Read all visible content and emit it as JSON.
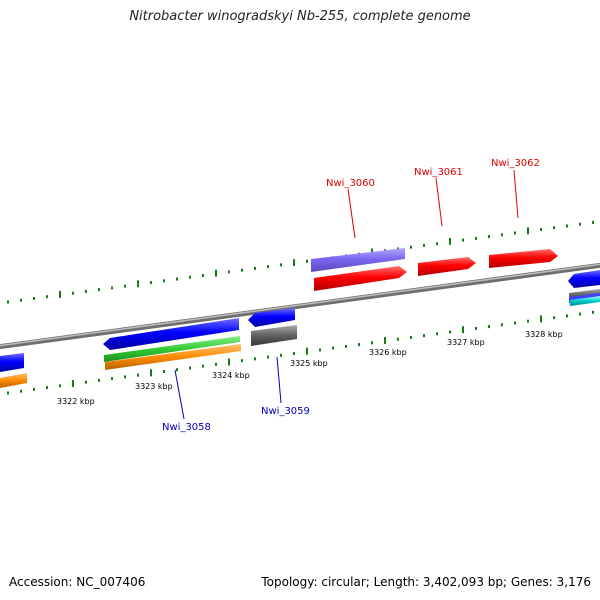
{
  "title": "Nitrobacter winogradskyi Nb-255, complete genome",
  "footer": {
    "accession": "Accession: NC_007406",
    "summary": "Topology: circular; Length: 3,402,093 bp; Genes: 3,176"
  },
  "scale": {
    "ticks": [
      {
        "label": "3322 kbp"
      },
      {
        "label": "3323 kbp"
      },
      {
        "label": "3324 kbp"
      },
      {
        "label": "3325 kbp"
      },
      {
        "label": "3326 kbp"
      },
      {
        "label": "3327 kbp"
      },
      {
        "label": "3328 kbp"
      }
    ]
  },
  "gene_labels": [
    {
      "name": "Nwi_3060",
      "color": "#dd0000"
    },
    {
      "name": "Nwi_3061",
      "color": "#dd0000"
    },
    {
      "name": "Nwi_3062",
      "color": "#dd0000"
    },
    {
      "name": "Nwi_3058",
      "color": "#0000bb"
    },
    {
      "name": "Nwi_3059",
      "color": "#0000bb"
    }
  ],
  "colors": {
    "backbone": "#8c8c8c",
    "forward_cds": "#ff0000",
    "reverse_cds": "#0000ff",
    "rna_feature": "#7b68ee",
    "gc_skew": "#1a7a1a",
    "green_track": "#33cc33",
    "orange_track": "#ff8c00",
    "gray_track": "#666666",
    "cyan_track": "#00cccc"
  }
}
